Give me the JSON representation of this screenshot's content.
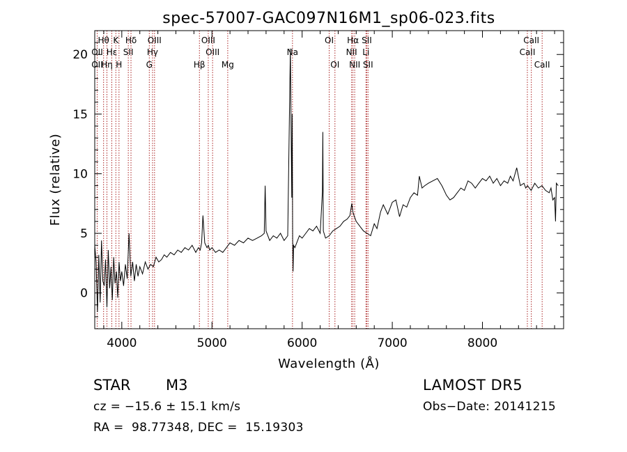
{
  "chart_data": {
    "type": "line",
    "title": "spec-57007-GAC097N16M1_sp06-023.fits",
    "xlabel": "Wavelength (Å)",
    "ylabel": "Flux (relative)",
    "xlim": [
      3700,
      8900
    ],
    "ylim": [
      -3,
      22
    ],
    "xticks": [
      4000,
      5000,
      6000,
      7000,
      8000
    ],
    "yticks": [
      0,
      5,
      10,
      15,
      20
    ],
    "grid": false,
    "line_color": "#000000",
    "marker_color": "#aa2222",
    "lines": [
      {
        "label": "Hθ",
        "wave": 3798,
        "row": 0
      },
      {
        "label": "OII",
        "wave": 3727,
        "row": 1
      },
      {
        "label": "OII",
        "wave": 3727,
        "row": 2
      },
      {
        "label": "Hη",
        "wave": 3835,
        "row": 2
      },
      {
        "label": "Hε",
        "wave": 3889,
        "row": 1
      },
      {
        "label": "K",
        "wave": 3934,
        "row": 0
      },
      {
        "label": "H",
        "wave": 3969,
        "row": 2
      },
      {
        "label": "Hδ",
        "wave": 4102,
        "row": 0
      },
      {
        "label": "SII",
        "wave": 4072,
        "row": 1
      },
      {
        "label": "OIII",
        "wave": 4363,
        "row": 0
      },
      {
        "label": "Hγ",
        "wave": 4341,
        "row": 1
      },
      {
        "label": "G",
        "wave": 4305,
        "row": 2
      },
      {
        "label": "OIII",
        "wave": 4959,
        "row": 0
      },
      {
        "label": "OIII",
        "wave": 5007,
        "row": 1
      },
      {
        "label": "Hβ",
        "wave": 4861,
        "row": 2
      },
      {
        "label": "Mg",
        "wave": 5175,
        "row": 2
      },
      {
        "label": "Na",
        "wave": 5893,
        "row": 1
      },
      {
        "label": "OI",
        "wave": 6300,
        "row": 0
      },
      {
        "label": "OI",
        "wave": 6364,
        "row": 2
      },
      {
        "label": "Hα",
        "wave": 6563,
        "row": 0
      },
      {
        "label": "NII",
        "wave": 6548,
        "row": 1
      },
      {
        "label": "NII",
        "wave": 6583,
        "row": 2
      },
      {
        "label": "SII",
        "wave": 6717,
        "row": 0
      },
      {
        "label": "Li",
        "wave": 6708,
        "row": 1
      },
      {
        "label": "SII",
        "wave": 6731,
        "row": 2
      },
      {
        "label": "CaII",
        "wave": 8542,
        "row": 0
      },
      {
        "label": "CaII",
        "wave": 8498,
        "row": 1
      },
      {
        "label": "CaII",
        "wave": 8662,
        "row": 2
      }
    ],
    "series": [
      {
        "x": [
          3700,
          3715,
          3730,
          3745,
          3760,
          3775,
          3790,
          3805,
          3820,
          3835,
          3850,
          3865,
          3880,
          3895,
          3910,
          3925,
          3940,
          3955,
          3970,
          3985,
          4000,
          4020,
          4040,
          4060,
          4080,
          4100,
          4120,
          4140,
          4160,
          4180,
          4200,
          4230,
          4260,
          4290,
          4320,
          4350,
          4380,
          4410,
          4440,
          4470,
          4500,
          4540,
          4580,
          4620,
          4660,
          4700,
          4740,
          4780,
          4820,
          4850,
          4870,
          4885,
          4900,
          4920,
          4945,
          4960,
          4975,
          5000,
          5040,
          5080,
          5120,
          5160,
          5200,
          5250,
          5300,
          5350,
          5400,
          5450,
          5500,
          5550,
          5580,
          5590,
          5600,
          5640,
          5680,
          5720,
          5760,
          5800,
          5840,
          5870,
          5885,
          5890,
          5895,
          5900,
          5905,
          5920,
          5940,
          5970,
          6000,
          6040,
          6080,
          6120,
          6160,
          6200,
          6225,
          6230,
          6235,
          6260,
          6300,
          6340,
          6380,
          6420,
          6460,
          6500,
          6530,
          6550,
          6563,
          6580,
          6600,
          6640,
          6680,
          6720,
          6760,
          6800,
          6830,
          6870,
          6900,
          6950,
          7000,
          7040,
          7080,
          7120,
          7160,
          7200,
          7240,
          7280,
          7300,
          7330,
          7360,
          7400,
          7450,
          7500,
          7550,
          7600,
          7640,
          7680,
          7720,
          7760,
          7800,
          7840,
          7880,
          7920,
          7960,
          8000,
          8040,
          8080,
          8120,
          8160,
          8200,
          8240,
          8280,
          8310,
          8340,
          8380,
          8420,
          8460,
          8480,
          8500,
          8540,
          8580,
          8620,
          8660,
          8700,
          8740,
          8760,
          8780,
          8800,
          8810,
          8820,
          8840
        ],
        "y": [
          4.0,
          2.6,
          -1.6,
          3.2,
          -0.8,
          4.4,
          1.0,
          0.6,
          2.8,
          -1.2,
          3.6,
          0.4,
          2.2,
          -0.6,
          3.0,
          0.8,
          1.8,
          -0.4,
          2.6,
          1.0,
          1.8,
          0.6,
          2.4,
          1.2,
          5.0,
          1.4,
          2.6,
          1.0,
          2.4,
          1.4,
          2.2,
          1.6,
          2.6,
          2.0,
          2.4,
          2.2,
          3.0,
          2.6,
          2.8,
          3.2,
          3.0,
          3.4,
          3.2,
          3.6,
          3.4,
          3.8,
          3.6,
          4.0,
          3.4,
          3.8,
          3.6,
          4.2,
          6.5,
          4.2,
          3.8,
          4.0,
          3.6,
          3.8,
          3.4,
          3.6,
          3.4,
          3.8,
          4.2,
          4.0,
          4.4,
          4.2,
          4.6,
          4.4,
          4.6,
          4.8,
          5.0,
          9.0,
          5.2,
          4.4,
          4.8,
          4.6,
          5.0,
          4.4,
          4.8,
          20.5,
          8.0,
          15.0,
          4.5,
          1.8,
          4.0,
          3.8,
          4.2,
          4.8,
          4.6,
          5.0,
          5.4,
          5.2,
          5.6,
          5.0,
          8.5,
          13.5,
          5.2,
          4.6,
          4.8,
          5.2,
          5.4,
          5.6,
          6.0,
          6.2,
          6.5,
          7.5,
          6.8,
          6.4,
          6.0,
          5.6,
          5.2,
          5.0,
          4.8,
          5.8,
          5.4,
          6.8,
          7.4,
          6.6,
          7.6,
          7.8,
          6.4,
          7.4,
          7.2,
          8.0,
          8.4,
          8.2,
          9.8,
          8.8,
          9.0,
          9.2,
          9.4,
          9.6,
          9.0,
          8.2,
          7.8,
          8.0,
          8.4,
          8.8,
          8.6,
          9.4,
          9.2,
          8.8,
          9.2,
          9.6,
          9.4,
          9.8,
          9.2,
          9.6,
          9.0,
          9.4,
          9.2,
          9.8,
          9.4,
          10.5,
          9.0,
          9.2,
          8.8,
          9.0,
          8.6,
          9.2,
          8.8,
          9.0,
          8.6,
          8.4,
          8.8,
          7.8,
          8.0,
          6.0,
          9.2,
          9.0
        ]
      }
    ]
  },
  "info": {
    "object_class": "STAR",
    "subclass": "M3",
    "survey": "LAMOST DR5",
    "redshift": "cz = −15.6 ± 15.1 km/s",
    "obs_date": "Obs−Date: 20141215",
    "coords": "RA =  98.77348, DEC =  15.19303"
  }
}
